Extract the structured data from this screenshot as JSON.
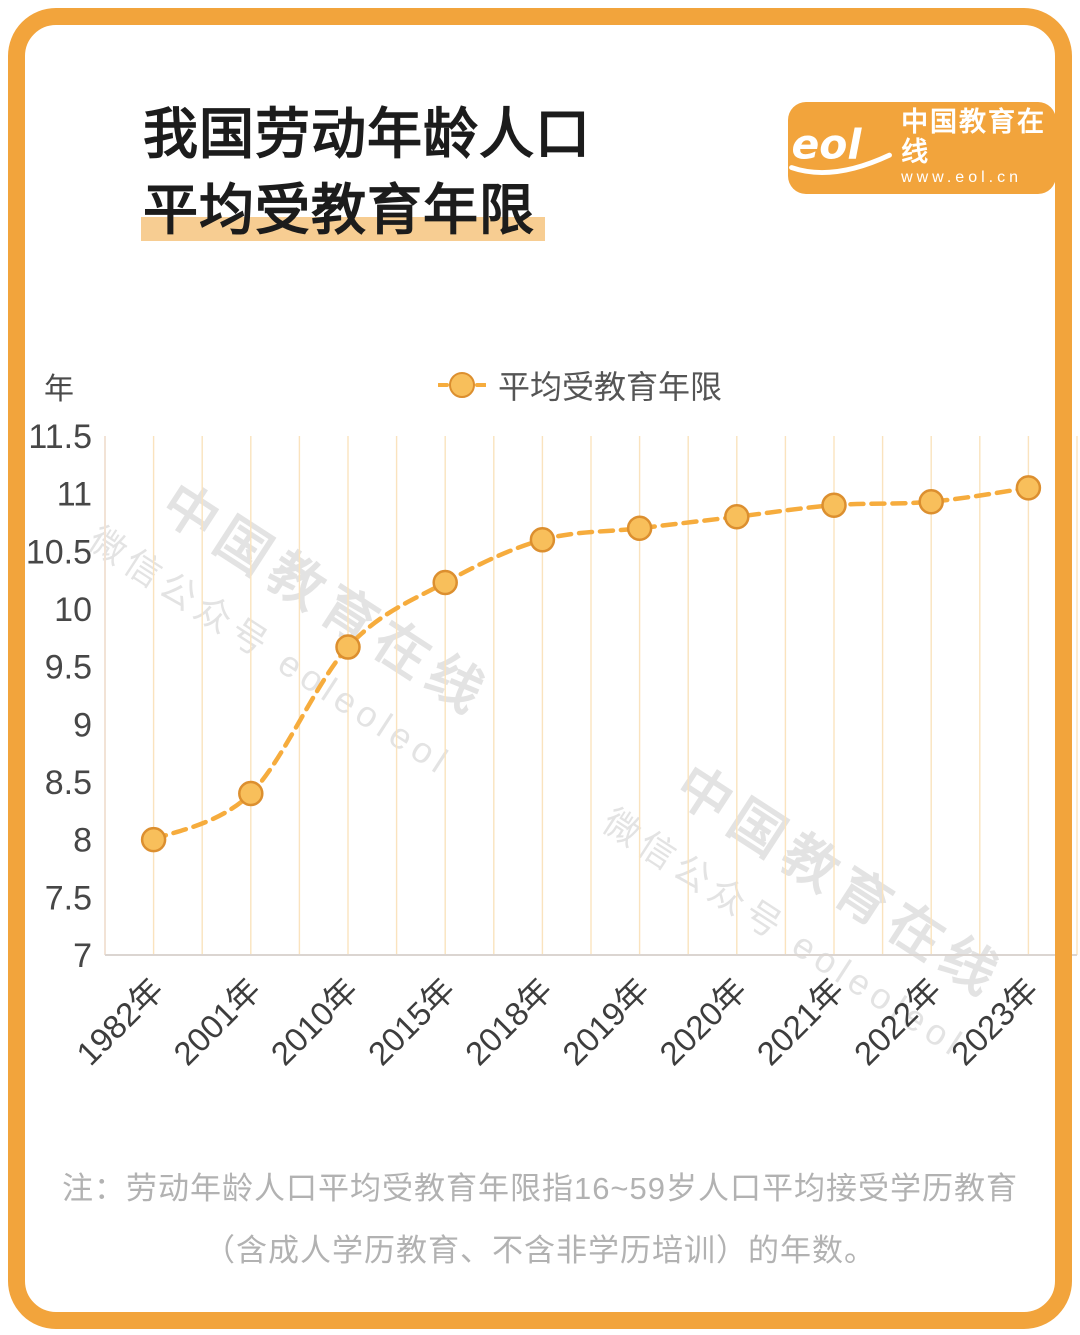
{
  "header": {
    "title_line1": "我国劳动年龄人口",
    "title_line2": "平均受教育年限"
  },
  "logo": {
    "brand": "中国教育在线",
    "url": "www.eol.cn",
    "mark": "eol"
  },
  "watermark": {
    "line1": "中国教育在线",
    "line2": "微信公众号 eoleoleol"
  },
  "note": {
    "line1": "注：劳动年龄人口平均受教育年限指16~59岁人口平均接受学历教育",
    "line2": "（含成人学历教育、不含非学历培训）的年数。"
  },
  "chart_data": {
    "type": "line",
    "title": "我国劳动年龄人口平均受教育年限",
    "series_name": "平均受教育年限",
    "ylabel": "年",
    "categories": [
      "1982年",
      "2001年",
      "2010年",
      "2015年",
      "2018年",
      "2019年",
      "2020年",
      "2021年",
      "2022年",
      "2023年"
    ],
    "values": [
      8.0,
      8.4,
      9.67,
      10.23,
      10.6,
      10.7,
      10.8,
      10.9,
      10.93,
      11.05
    ],
    "ylim": [
      7,
      11.5
    ],
    "ytick_step": 0.5,
    "yticks": [
      "11.5",
      "11",
      "10.5",
      "10",
      "9.5",
      "9",
      "8.5",
      "8",
      "7.5",
      "7"
    ],
    "grid": "vertical-only",
    "line_style": "dashed",
    "smooth": true,
    "legend_position": "top-center",
    "colors": {
      "accent": "#F2A43C",
      "line": "#F6AC3D",
      "point_fill": "#F8BF5B",
      "point_stroke": "#DC8F2F",
      "grid": "#FAE3BE",
      "axis_left": "#F2E3D6",
      "axis_bottom": "#DBD5D1",
      "tick_label": "#474747",
      "title_highlight": "#F7CD92"
    }
  }
}
